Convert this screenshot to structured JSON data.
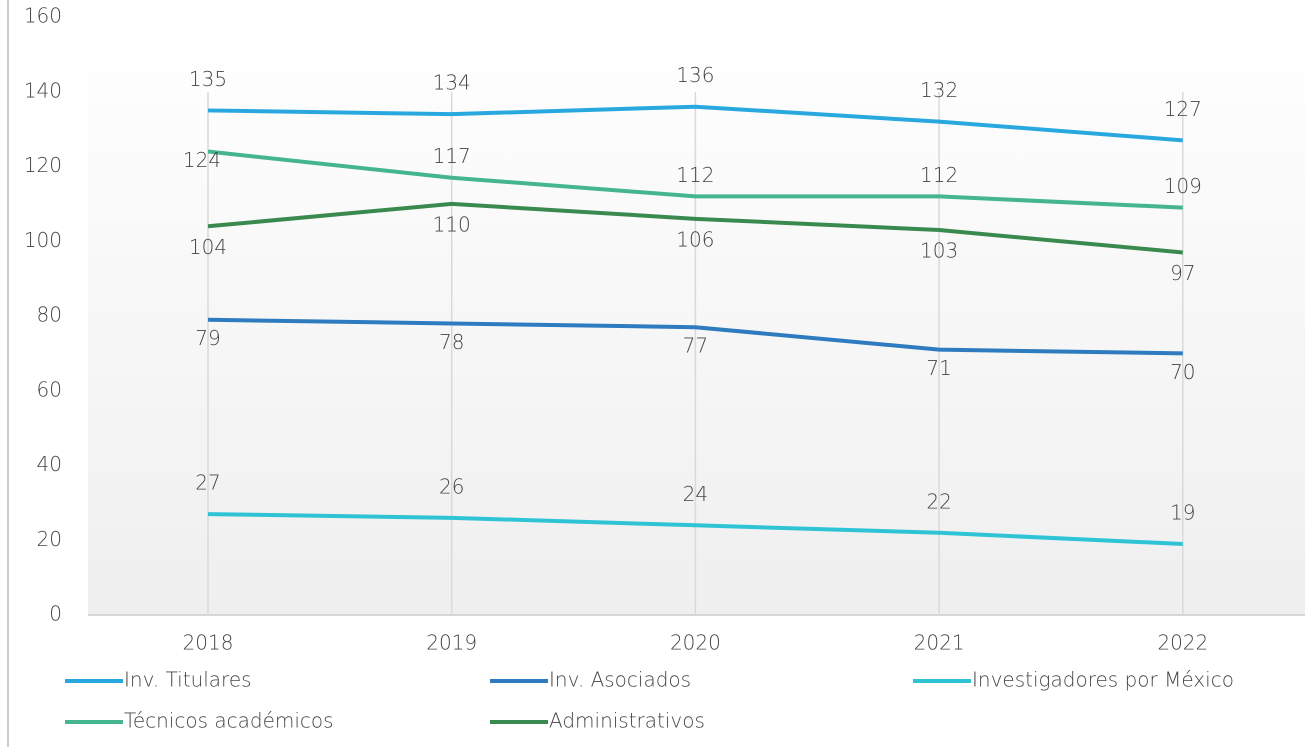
{
  "chart_data": {
    "type": "line",
    "categories": [
      "2018",
      "2019",
      "2020",
      "2021",
      "2022"
    ],
    "series": [
      {
        "name": "Inv. Titulares",
        "color": "#29a8e0",
        "values": [
          135,
          134,
          136,
          132,
          127
        ]
      },
      {
        "name": "Inv. Asociados",
        "color": "#2e7bbf",
        "values": [
          79,
          78,
          77,
          71,
          70
        ]
      },
      {
        "name": "Investigadores por México",
        "color": "#2ec4d6",
        "values": [
          27,
          26,
          24,
          22,
          19
        ]
      },
      {
        "name": "Técnicos académicos",
        "color": "#45b58f",
        "values": [
          124,
          117,
          112,
          112,
          109
        ]
      },
      {
        "name": "Administrativos",
        "color": "#3a8a4f",
        "values": [
          104,
          110,
          106,
          103,
          97
        ]
      }
    ],
    "ylim": [
      0,
      160
    ],
    "yticks": [
      0,
      20,
      40,
      60,
      80,
      100,
      120,
      140,
      160
    ],
    "grid": true,
    "legend": "bottom"
  }
}
